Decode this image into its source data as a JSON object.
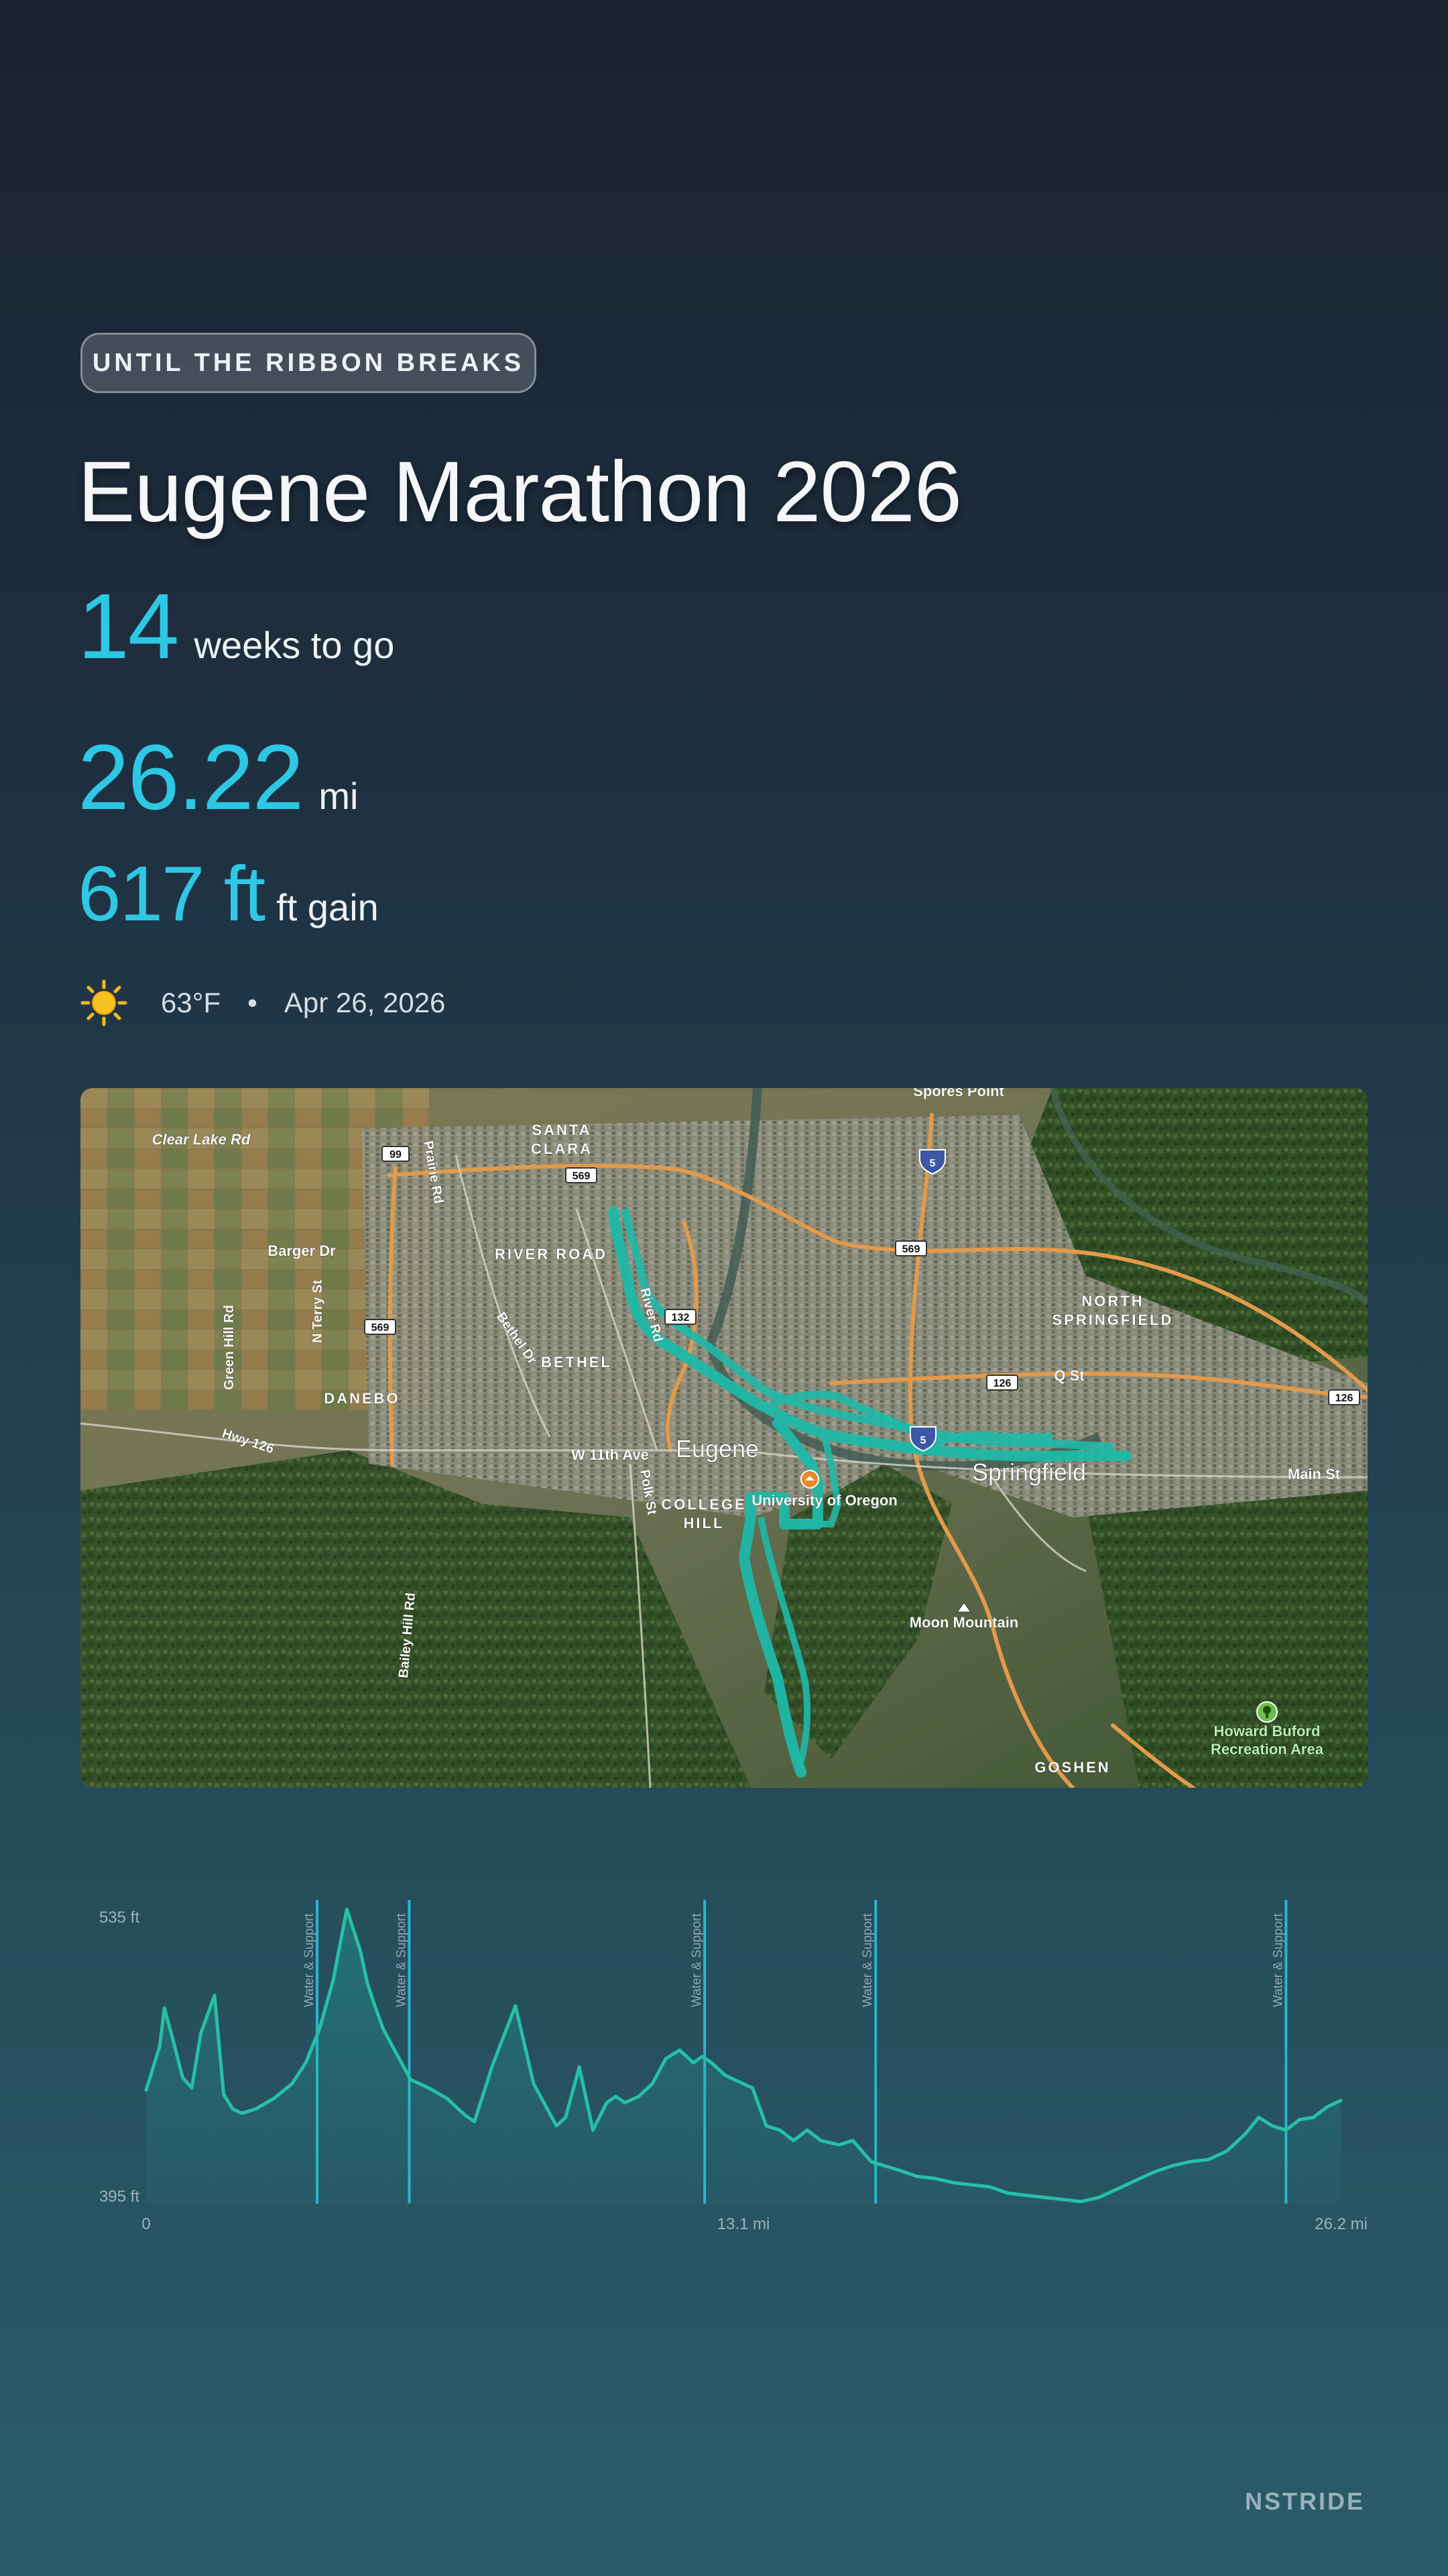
{
  "badge": "UNTIL THE RIBBON BREAKS",
  "title": "Eugene Marathon 2026",
  "metrics": {
    "weeks_value": "14",
    "weeks_label": "weeks to go",
    "distance_value": "26.22",
    "distance_unit": "mi",
    "gain_value": "617 ft",
    "gain_unit": "ft gain"
  },
  "weather": {
    "icon": "sun-icon",
    "temp": "63°F",
    "separator": "•",
    "date": "Apr 26, 2026"
  },
  "map": {
    "labels": {
      "spores_point": "Spores Point",
      "clear_lake_rd": "Clear Lake Rd",
      "santa_clara_1": "SANTA",
      "santa_clara_2": "CLARA",
      "barger_dr": "Barger Dr",
      "river_road": "RIVER ROAD",
      "river_rd": "River Rd",
      "north_springfield_1": "NORTH",
      "north_springfield_2": "SPRINGFIELD",
      "q_st": "Q St",
      "bethel_dr": "Bethel Dr",
      "bethel": "BETHEL",
      "danebo": "DANEBO",
      "green_hill_rd": "Green Hill Rd",
      "n_terry_st": "N Terry St",
      "prairie_rd": "Prairie Rd",
      "hwy_126": "Hwy 126",
      "w_11th_ave": "W 11th Ave",
      "eugene": "Eugene",
      "springfield": "Springfield",
      "main_st": "Main St",
      "university_of_oregon": "University of Oregon",
      "polk_st": "Polk St",
      "college_hill_1": "COLLEGE",
      "college_hill_2": "HILL",
      "moon_mountain": "Moon Mountain",
      "bailey_hill_rd": "Bailey Hill Rd",
      "howard_buford_1": "Howard Buford",
      "howard_buford_2": "Recreation Area",
      "goshen": "GOSHEN"
    },
    "shields": {
      "s99": "99",
      "s569a": "569",
      "s569b": "569",
      "s569c": "569",
      "s132": "132",
      "s126a": "126",
      "s126b": "126",
      "i5a": "5",
      "i5b": "5"
    },
    "route_color": "#1fb8a8"
  },
  "chart_data": {
    "type": "area",
    "x_unit": "mi",
    "xlim": [
      0,
      26.2
    ],
    "ylim": [
      395,
      535
    ],
    "ytick_labels": [
      "535 ft",
      "395 ft"
    ],
    "xtick_labels": [
      "0",
      "13.1 mi",
      "26.2 mi"
    ],
    "markers": [
      {
        "x": 3.75,
        "label": "Water & Support"
      },
      {
        "x": 5.77,
        "label": "Water & Support"
      },
      {
        "x": 12.25,
        "label": "Water & Support"
      },
      {
        "x": 16.0,
        "label": "Water & Support"
      },
      {
        "x": 25.0,
        "label": "Water & Support"
      }
    ],
    "x": [
      0,
      0.3,
      0.4,
      0.6,
      0.8,
      1.0,
      1.2,
      1.5,
      1.7,
      1.9,
      2.1,
      2.4,
      2.8,
      3.2,
      3.5,
      3.8,
      4.1,
      4.4,
      4.7,
      4.85,
      5.0,
      5.2,
      5.5,
      5.8,
      6.2,
      6.6,
      7.0,
      7.2,
      7.6,
      8.1,
      8.5,
      8.8,
      9.0,
      9.2,
      9.5,
      9.8,
      10.1,
      10.3,
      10.5,
      10.8,
      11.1,
      11.4,
      11.7,
      12.0,
      12.2,
      12.4,
      12.7,
      13.0,
      13.3,
      13.6,
      13.9,
      14.2,
      14.5,
      14.8,
      15.2,
      15.5,
      15.9,
      16.2,
      16.5,
      16.9,
      17.3,
      17.7,
      18.1,
      18.5,
      18.9,
      19.3,
      19.7,
      20.1,
      20.5,
      20.9,
      21.3,
      21.7,
      22.1,
      22.5,
      22.9,
      23.3,
      23.7,
      24.1,
      24.4,
      24.7,
      25.0,
      25.3,
      25.6,
      25.9,
      26.2
    ],
    "y": [
      449,
      470,
      488,
      472,
      455,
      450,
      476,
      494,
      447,
      440,
      438,
      440,
      445,
      452,
      462,
      478,
      501,
      535,
      515,
      500,
      490,
      478,
      466,
      454,
      450,
      445,
      437,
      434,
      461,
      489,
      452,
      440,
      432,
      436,
      460,
      430,
      443,
      446,
      443,
      446,
      452,
      464,
      468,
      462,
      465,
      462,
      456,
      453,
      450,
      432,
      430,
      425,
      430,
      425,
      423,
      425,
      415,
      413,
      411,
      408,
      407,
      405,
      404,
      403,
      400,
      399,
      398,
      397,
      396,
      398,
      402,
      406,
      410,
      413,
      415,
      416,
      420,
      428,
      436,
      432,
      430,
      435,
      436,
      441,
      444
    ]
  },
  "footer": "NSTRIDE"
}
